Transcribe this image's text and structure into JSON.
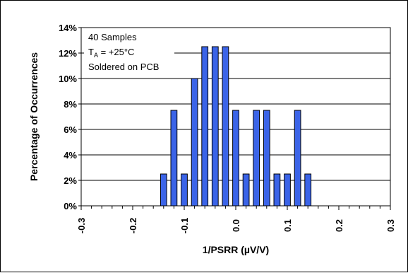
{
  "chart_data": {
    "type": "bar",
    "title": "",
    "xlabel": "1/PSRR (µV/V)",
    "ylabel": "Percentage of Occurrences",
    "xlim": [
      -0.3,
      0.3
    ],
    "ylim": [
      0,
      14
    ],
    "y_tick_suffix": "%",
    "x_ticks": [
      -0.3,
      -0.2,
      -0.1,
      0.0,
      0.1,
      0.2,
      0.3
    ],
    "x_tick_labels": [
      "-0.3",
      "-0.2",
      "-0.1",
      "0.0",
      "0.1",
      "0.2",
      "0.3"
    ],
    "y_ticks": [
      0,
      2,
      4,
      6,
      8,
      10,
      12,
      14
    ],
    "y_tick_labels": [
      "0%",
      "2%",
      "4%",
      "6%",
      "8%",
      "10%",
      "12%",
      "14%"
    ],
    "grid": {
      "horizontal": true,
      "vertical": false
    },
    "bar_color": "#3b64e8",
    "x": [
      -0.14,
      -0.12,
      -0.1,
      -0.08,
      -0.06,
      -0.04,
      -0.02,
      0.0,
      0.02,
      0.04,
      0.06,
      0.08,
      0.1,
      0.12,
      0.14
    ],
    "values": [
      2.5,
      7.5,
      2.5,
      10,
      12.5,
      12.5,
      12.5,
      7.5,
      2.5,
      7.5,
      7.5,
      2.5,
      2.5,
      7.5,
      2.5
    ],
    "annotation": {
      "lines": [
        "40 Samples",
        "Soldered on PCB"
      ],
      "ta_prefix": "T",
      "ta_sub": "A",
      "ta_value": " = +25°C"
    }
  }
}
